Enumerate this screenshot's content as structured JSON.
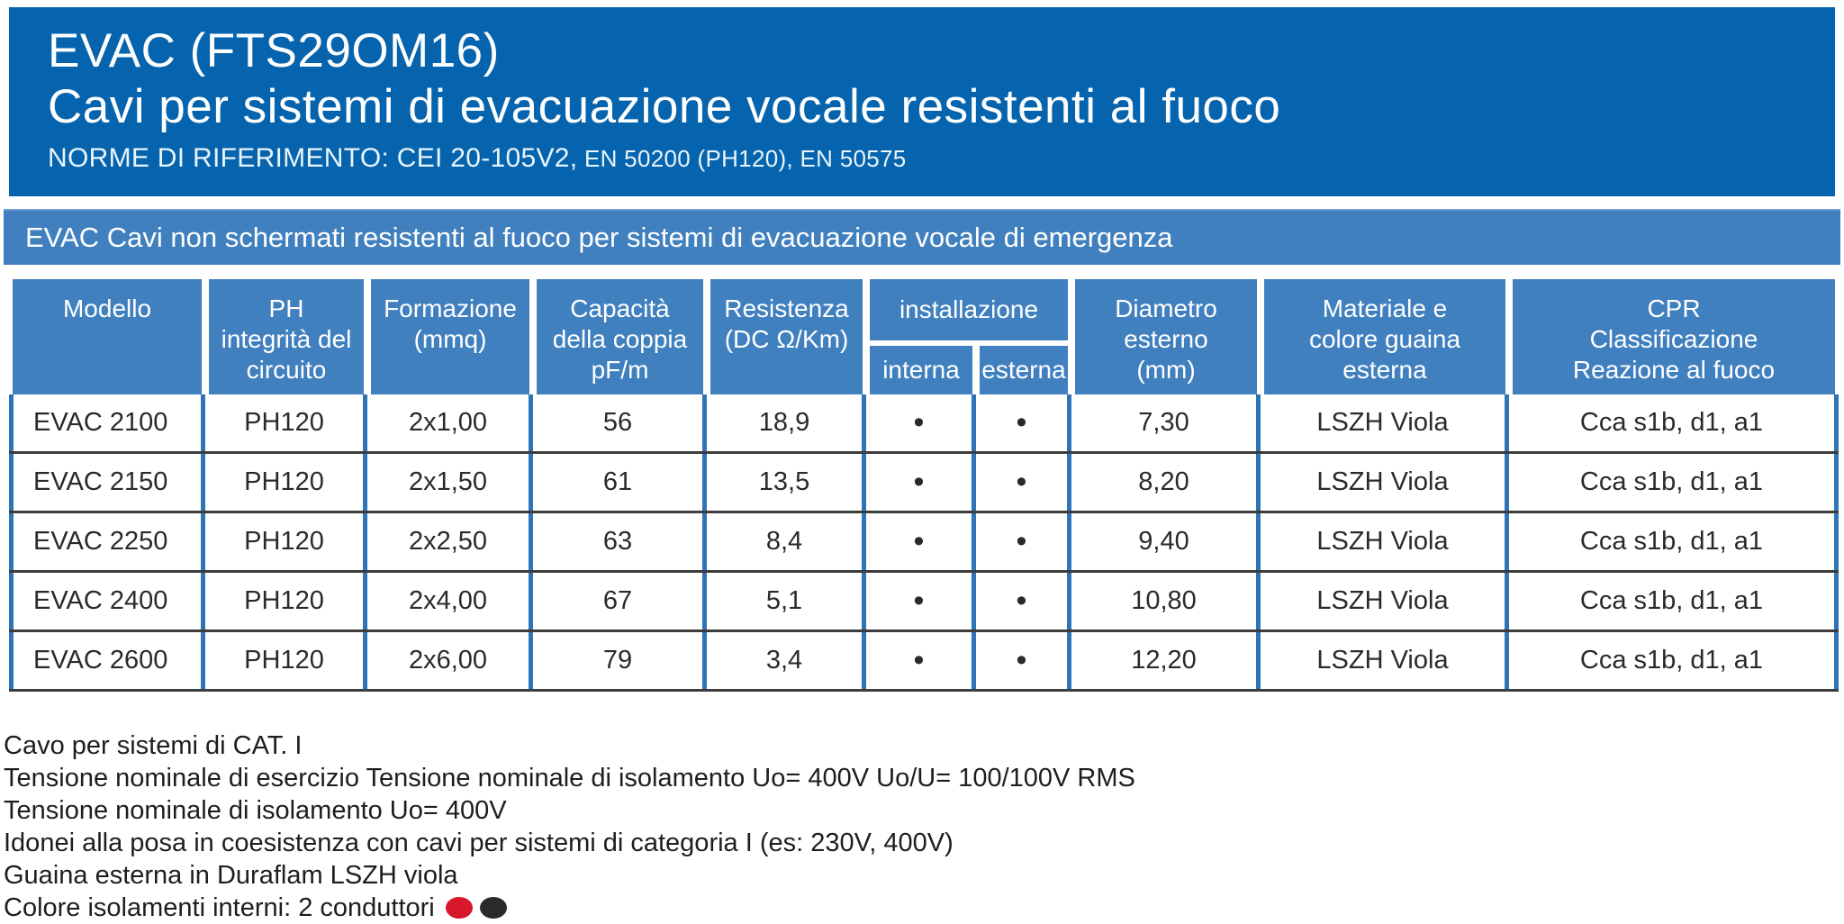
{
  "header": {
    "title": "EVAC (FTS29OM16)",
    "subtitle": "Cavi per sistemi di evacuazione vocale resistenti al fuoco",
    "norms_prefix": "NORME DI RIFERIMENTO: CEI 20-105V2,",
    "norms_suffix": " EN 50200 (PH120), EN 50575"
  },
  "band": {
    "text": "EVAC Cavi non schermati resistenti al fuoco per sistemi di evacuazione vocale di emergenza"
  },
  "table": {
    "header_cells": {
      "model": "Modello",
      "ph": "PH\nintegrità del\ncircuito",
      "formation": "Formazione\n(mmq)",
      "capacity": "Capacità\ndella coppia\npF/m",
      "resistance": "Resistenza\n(DC Ω/Km)",
      "installation_group": "installazione",
      "internal": "interna",
      "external": "esterna",
      "diameter": "Diametro\nesterno\n(mm)",
      "sheath": "Materiale e\ncolore guaina\nesterna",
      "cpr": "CPR\nClassificazione\nReazione al fuoco"
    },
    "rows": [
      {
        "model": "EVAC 2100",
        "ph": "PH120",
        "formation": "2x1,00",
        "capacity": "56",
        "resistance": "18,9",
        "internal": "•",
        "external": "•",
        "diameter": "7,30",
        "sheath": "LSZH Viola",
        "cpr": "Cca s1b, d1, a1"
      },
      {
        "model": "EVAC 2150",
        "ph": "PH120",
        "formation": "2x1,50",
        "capacity": "61",
        "resistance": "13,5",
        "internal": "•",
        "external": "•",
        "diameter": "8,20",
        "sheath": "LSZH Viola",
        "cpr": "Cca s1b, d1, a1"
      },
      {
        "model": "EVAC 2250",
        "ph": "PH120",
        "formation": "2x2,50",
        "capacity": "63",
        "resistance": "8,4",
        "internal": "•",
        "external": "•",
        "diameter": "9,40",
        "sheath": "LSZH Viola",
        "cpr": "Cca s1b, d1, a1"
      },
      {
        "model": "EVAC 2400",
        "ph": "PH120",
        "formation": "2x4,00",
        "capacity": "67",
        "resistance": "5,1",
        "internal": "•",
        "external": "•",
        "diameter": "10,80",
        "sheath": "LSZH Viola",
        "cpr": "Cca s1b, d1, a1"
      },
      {
        "model": "EVAC 2600",
        "ph": "PH120",
        "formation": "2x6,00",
        "capacity": "79",
        "resistance": "3,4",
        "internal": "•",
        "external": "•",
        "diameter": "12,20",
        "sheath": "LSZH Viola",
        "cpr": "Cca s1b, d1, a1"
      }
    ]
  },
  "notes": {
    "lines": [
      "Cavo per sistemi di CAT. I",
      "Tensione nominale di esercizio Tensione nominale di isolamento Uo= 400V Uo/U= 100/100V RMS",
      "Tensione nominale di isolamento Uo= 400V",
      "Idonei alla posa in coesistenza con cavi per sistemi di categoria I (es: 230V, 400V)",
      "Guaina esterna in Duraflam LSZH viola"
    ],
    "conductors_line": "Colore isolamenti interni: 2 conduttori",
    "conductor_colors": [
      "#D7182A",
      "#2B2A29"
    ]
  },
  "colors": {
    "dark_blue_header": "#0564AD",
    "medium_blue": "#4180BF",
    "table_border_blue": "#2E74B6",
    "row_divider": "#3C3C3C",
    "conductor_red": "#D7182A",
    "conductor_black": "#2B2A29"
  }
}
